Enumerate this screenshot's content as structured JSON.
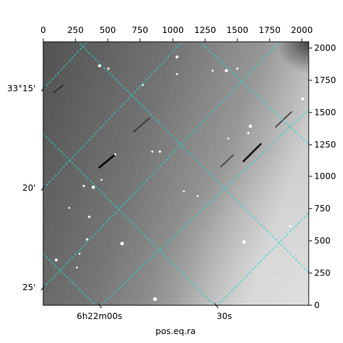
{
  "figure": {
    "x_axis_title": "pos.eq.ra",
    "colors": {
      "grid": "#1fd6d6",
      "axis": "#000000",
      "background": "#ffffff"
    }
  },
  "top_axis": {
    "ticks": [
      "0",
      "250",
      "500",
      "750",
      "1000",
      "1250",
      "1500",
      "1750",
      "2000"
    ]
  },
  "right_axis": {
    "ticks": [
      "0",
      "250",
      "500",
      "750",
      "1000",
      "1250",
      "1500",
      "1750",
      "2000"
    ]
  },
  "left_axis": {
    "ticks": [
      "33°15'",
      "20'",
      "25'"
    ]
  },
  "bottom_axis": {
    "ticks": [
      "6h22m00s",
      "30s"
    ]
  }
}
